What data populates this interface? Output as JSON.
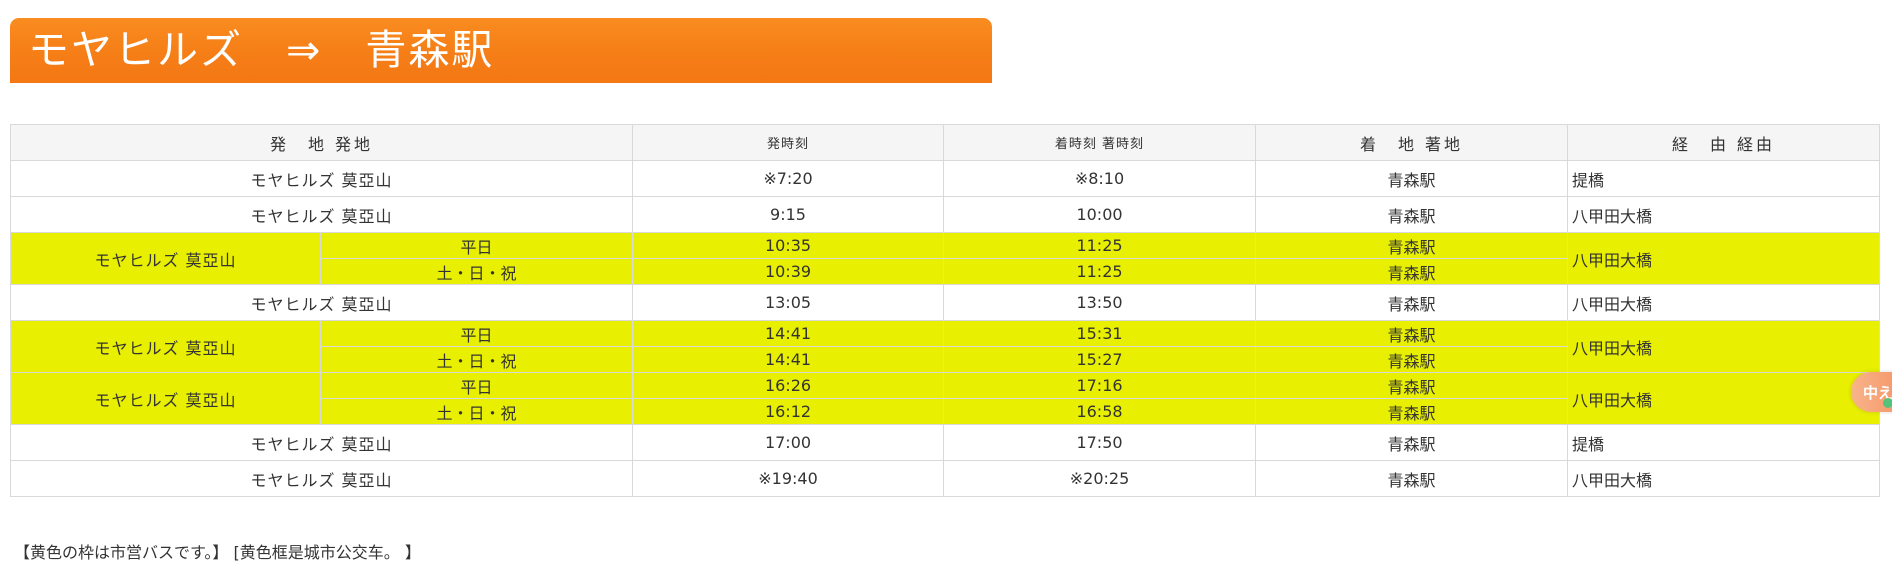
{
  "page": {
    "title": "モヤヒルズ　⇒　青森駅",
    "note": "【黄色の枠は市営バスです。】 [黄色框是城市公交车。 】"
  },
  "table": {
    "headers": {
      "origin": "発　地 発地",
      "depart": "発時刻",
      "arrive": "着時刻 著時刻",
      "dest": "着　地 著地",
      "route": "経　由 経由"
    },
    "rows": [
      {
        "origin": "モヤヒルズ 莫亞山",
        "depart": "※7:20",
        "arrive": "※8:10",
        "dest": "青森駅",
        "route": "提橋"
      },
      {
        "origin": "モヤヒルズ 莫亞山",
        "depart": "9:15",
        "arrive": "10:00",
        "dest": "青森駅",
        "route": "八甲田大橋"
      },
      {
        "origin": "モヤヒルズ 莫亞山",
        "route": "八甲田大橋",
        "sub": [
          {
            "day": "平日",
            "depart": "10:35",
            "arrive": "11:25",
            "dest": "青森駅"
          },
          {
            "day": "土・日・祝",
            "depart": "10:39",
            "arrive": "11:25",
            "dest": "青森駅"
          }
        ]
      },
      {
        "origin": "モヤヒルズ 莫亞山",
        "depart": "13:05",
        "arrive": "13:50",
        "dest": "青森駅",
        "route": "八甲田大橋"
      },
      {
        "origin": "モヤヒルズ 莫亞山",
        "route": "八甲田大橋",
        "sub": [
          {
            "day": "平日",
            "depart": "14:41",
            "arrive": "15:31",
            "dest": "青森駅"
          },
          {
            "day": "土・日・祝",
            "depart": "14:41",
            "arrive": "15:27",
            "dest": "青森駅"
          }
        ]
      },
      {
        "origin": "モヤヒルズ 莫亞山",
        "route": "八甲田大橋",
        "sub": [
          {
            "day": "平日",
            "depart": "16:26",
            "arrive": "17:16",
            "dest": "青森駅"
          },
          {
            "day": "土・日・祝",
            "depart": "16:12",
            "arrive": "16:58",
            "dest": "青森駅"
          }
        ]
      },
      {
        "origin": "モヤヒルズ 莫亞山",
        "depart": "17:00",
        "arrive": "17:50",
        "dest": "青森駅",
        "route": "提橋"
      },
      {
        "origin": "モヤヒルズ 莫亞山",
        "depart": "※19:40",
        "arrive": "※20:25",
        "dest": "青森駅",
        "route": "八甲田大橋"
      }
    ]
  },
  "badge": {
    "label": "中え"
  },
  "colors": {
    "title_orange": "#f57d16",
    "highlight_yellow": "#e8ef00",
    "header_gray": "#f5f5f5",
    "border": "#d9d9d9"
  }
}
